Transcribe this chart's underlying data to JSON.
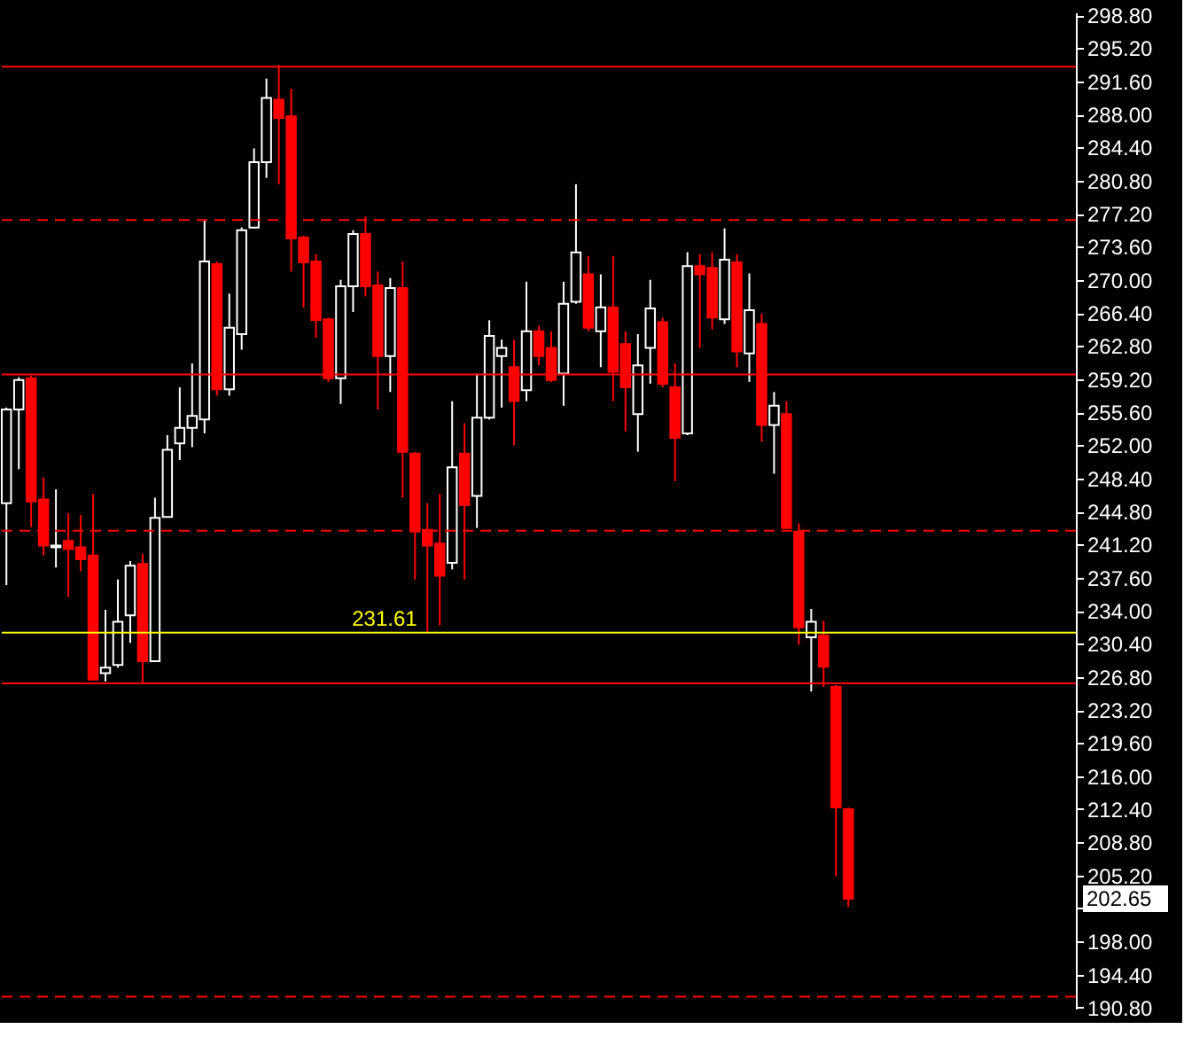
{
  "chart_data": {
    "type": "candlestick",
    "categories": [
      null,
      null,
      null,
      null,
      null,
      null,
      null,
      null,
      null,
      null,
      null,
      null,
      null,
      null,
      null,
      null,
      null,
      null,
      null,
      null,
      null,
      null,
      null,
      null,
      null,
      null,
      null,
      null,
      null,
      null,
      null,
      null,
      null,
      null,
      null,
      null,
      null,
      null,
      null,
      null,
      null,
      null,
      null,
      null,
      null,
      null,
      null,
      null,
      null,
      null,
      null,
      null,
      null,
      null,
      null,
      null,
      null,
      null,
      null,
      null,
      null,
      null,
      null,
      null,
      null,
      null,
      null,
      null,
      null,
      null,
      null,
      null,
      null,
      null,
      null,
      null,
      null,
      null,
      null,
      null,
      null,
      null,
      null,
      null,
      null,
      null,
      null
    ],
    "ohlc": [
      [
        245.7,
        256.1,
        236.8,
        255.9
      ],
      [
        255.9,
        259.4,
        249.4,
        259.1
      ],
      [
        259.3,
        259.6,
        243.1,
        245.9
      ],
      [
        246.1,
        248.5,
        240.0,
        241.1
      ],
      [
        240.9,
        247.2,
        238.7,
        241.1
      ],
      [
        241.6,
        244.6,
        235.5,
        240.7
      ],
      [
        240.9,
        244.4,
        238.3,
        239.6
      ],
      [
        240.0,
        246.7,
        226.5,
        226.5
      ],
      [
        227.2,
        234.1,
        226.3,
        227.8
      ],
      [
        228.1,
        237.4,
        227.8,
        232.8
      ],
      [
        233.5,
        239.4,
        230.5,
        238.9
      ],
      [
        239.1,
        240.2,
        226.1,
        228.5
      ],
      [
        228.5,
        246.3,
        228.5,
        244.1
      ],
      [
        244.2,
        253.1,
        244.2,
        251.5
      ],
      [
        252.2,
        258.3,
        250.4,
        253.9
      ],
      [
        253.9,
        260.9,
        251.8,
        255.2
      ],
      [
        254.8,
        276.5,
        253.3,
        272.0
      ],
      [
        271.7,
        272.0,
        257.4,
        258.1
      ],
      [
        258.1,
        268.5,
        257.4,
        264.8
      ],
      [
        264.1,
        275.7,
        262.4,
        275.4
      ],
      [
        275.7,
        284.3,
        275.6,
        282.8
      ],
      [
        282.8,
        291.9,
        281.1,
        289.8
      ],
      [
        289.6,
        293.4,
        280.4,
        287.6
      ],
      [
        287.8,
        290.8,
        270.9,
        274.5
      ],
      [
        274.6,
        274.8,
        267.0,
        271.9
      ],
      [
        272.0,
        272.8,
        263.7,
        265.6
      ],
      [
        265.7,
        265.9,
        258.9,
        259.3
      ],
      [
        259.3,
        270.0,
        256.5,
        269.3
      ],
      [
        269.3,
        275.4,
        266.5,
        275.0
      ],
      [
        275.0,
        276.9,
        268.2,
        269.3
      ],
      [
        269.4,
        270.9,
        255.9,
        261.7
      ],
      [
        261.7,
        270.2,
        257.8,
        269.1
      ],
      [
        269.1,
        272.0,
        246.3,
        251.3
      ],
      [
        251.1,
        251.3,
        237.4,
        242.6
      ],
      [
        242.8,
        245.7,
        231.6,
        241.1
      ],
      [
        241.3,
        246.7,
        232.4,
        237.8
      ],
      [
        239.2,
        256.8,
        238.5,
        249.6
      ],
      [
        251.1,
        254.4,
        237.4,
        245.5
      ],
      [
        246.5,
        259.8,
        243.0,
        255.0
      ],
      [
        255.0,
        265.6,
        254.8,
        263.9
      ],
      [
        261.7,
        263.5,
        256.1,
        262.6
      ],
      [
        260.5,
        263.5,
        252.0,
        256.8
      ],
      [
        258.0,
        269.8,
        256.8,
        264.4
      ],
      [
        264.4,
        265.0,
        260.7,
        261.7
      ],
      [
        262.6,
        264.4,
        258.9,
        259.1
      ],
      [
        259.8,
        269.8,
        256.3,
        267.4
      ],
      [
        267.6,
        280.4,
        267.4,
        273.0
      ],
      [
        270.6,
        272.6,
        264.4,
        264.8
      ],
      [
        264.4,
        270.6,
        260.5,
        267.0
      ],
      [
        267.0,
        272.6,
        256.8,
        260.0
      ],
      [
        263.0,
        264.4,
        253.5,
        258.3
      ],
      [
        255.4,
        264.1,
        251.3,
        260.7
      ],
      [
        262.6,
        270.0,
        258.7,
        266.9
      ],
      [
        265.4,
        265.9,
        258.3,
        258.7
      ],
      [
        258.3,
        260.9,
        248.1,
        252.8
      ],
      [
        253.3,
        273.0,
        253.1,
        271.5
      ],
      [
        271.5,
        272.8,
        262.6,
        270.6
      ],
      [
        271.3,
        273.0,
        264.6,
        265.9
      ],
      [
        265.7,
        275.6,
        265.2,
        272.2
      ],
      [
        271.9,
        272.8,
        260.5,
        262.2
      ],
      [
        262.0,
        270.7,
        258.9,
        266.7
      ],
      [
        265.2,
        266.3,
        252.4,
        254.2
      ],
      [
        254.2,
        257.8,
        248.9,
        256.3
      ],
      [
        255.4,
        256.8,
        243.0,
        243.0
      ],
      [
        242.6,
        243.5,
        230.3,
        232.2
      ],
      [
        231.1,
        234.2,
        225.2,
        232.8
      ],
      [
        231.3,
        232.9,
        225.7,
        227.9
      ],
      [
        225.7,
        225.9,
        205.1,
        212.6
      ],
      [
        212.4,
        212.6,
        201.8,
        202.65
      ],
      null,
      null,
      null,
      null,
      null,
      null,
      null,
      null,
      null,
      null,
      null,
      null,
      null,
      null,
      null,
      null,
      null,
      null
    ],
    "ylim": [
      190.7,
      299.1
    ],
    "yticks": [
      {
        "value": 298.8,
        "label": "298.80"
      },
      {
        "value": 295.2,
        "label": "295.20"
      },
      {
        "value": 291.6,
        "label": "291.60"
      },
      {
        "value": 288.0,
        "label": "288.00"
      },
      {
        "value": 284.4,
        "label": "284.40"
      },
      {
        "value": 280.8,
        "label": "280.80"
      },
      {
        "value": 277.2,
        "label": "277.20"
      },
      {
        "value": 273.6,
        "label": "273.60"
      },
      {
        "value": 270.0,
        "label": "270.00"
      },
      {
        "value": 266.4,
        "label": "266.40"
      },
      {
        "value": 262.8,
        "label": "262.80"
      },
      {
        "value": 259.2,
        "label": "259.20"
      },
      {
        "value": 255.6,
        "label": "255.60"
      },
      {
        "value": 252.0,
        "label": "252.00"
      },
      {
        "value": 248.4,
        "label": "248.40"
      },
      {
        "value": 244.8,
        "label": "244.80"
      },
      {
        "value": 241.2,
        "label": "241.20"
      },
      {
        "value": 237.6,
        "label": "237.60"
      },
      {
        "value": 234.0,
        "label": "234.00"
      },
      {
        "value": 230.4,
        "label": "230.40"
      },
      {
        "value": 226.8,
        "label": "226.80"
      },
      {
        "value": 223.2,
        "label": "223.20"
      },
      {
        "value": 219.6,
        "label": "219.60"
      },
      {
        "value": 216.0,
        "label": "216.00"
      },
      {
        "value": 212.4,
        "label": "212.40"
      },
      {
        "value": 208.8,
        "label": "208.80"
      },
      {
        "value": 205.2,
        "label": "205.20"
      },
      {
        "value": 201.6,
        "label": null
      },
      {
        "value": 198.0,
        "label": "198.00"
      },
      {
        "value": 194.4,
        "label": "194.40"
      },
      {
        "value": 190.8,
        "label": "190.80"
      }
    ],
    "tick_labels": "y",
    "grid": false,
    "ref_lines": [
      {
        "axis": "y",
        "value": 293.2,
        "color": "#ff0000",
        "line_style": "solid"
      },
      {
        "axis": "y",
        "value": 276.5,
        "color": "#ff0000",
        "line_style": "dashed"
      },
      {
        "axis": "y",
        "value": 259.7,
        "color": "#ff0000",
        "line_style": "solid"
      },
      {
        "axis": "y",
        "value": 242.7,
        "color": "#ff0000",
        "line_style": "dashed"
      },
      {
        "axis": "y",
        "value": 231.61,
        "label": "231.61",
        "color": "#ffff00",
        "line_style": "solid"
      },
      {
        "axis": "y",
        "value": 226.1,
        "color": "#ff0000",
        "line_style": "solid"
      },
      {
        "axis": "y",
        "value": 192.0,
        "color": "#ff0000",
        "line_style": "dashed"
      }
    ],
    "annotations": [
      "202.65"
    ]
  }
}
